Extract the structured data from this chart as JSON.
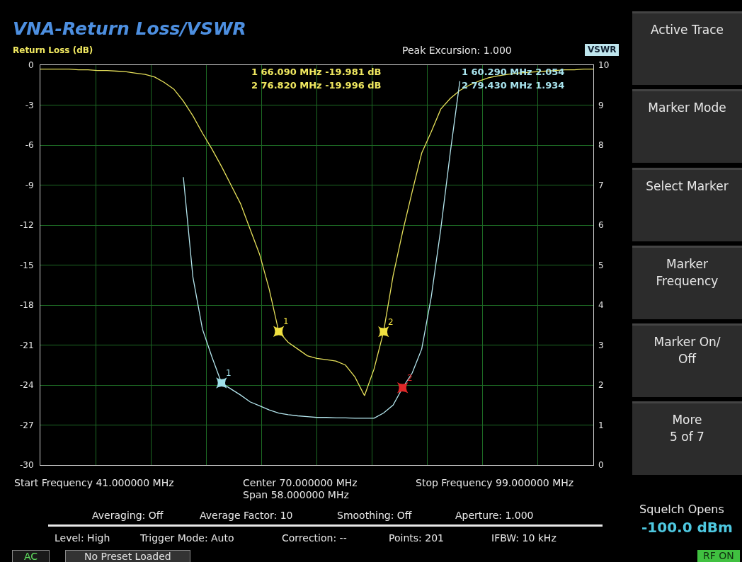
{
  "chart_data": {
    "type": "line",
    "title": "VNA-Return Loss/VSWR",
    "ylabel": "Return Loss (dB)",
    "y2label": "VSWR",
    "categories": [
      null,
      null,
      null,
      null,
      null,
      null,
      null,
      null,
      null,
      null,
      null,
      null,
      null,
      null,
      null,
      null,
      null,
      null,
      null,
      null,
      null,
      null,
      null,
      null,
      null,
      null,
      null,
      null,
      null,
      null,
      null,
      null,
      null,
      null,
      null,
      null,
      null,
      null,
      null,
      null,
      null,
      null,
      null,
      null,
      null,
      null,
      null,
      null,
      null,
      null,
      null,
      null,
      null,
      null,
      null,
      null,
      null,
      null,
      null
    ],
    "ylim": [
      -30,
      0
    ],
    "yticks": [
      -30,
      -27,
      -24,
      -21,
      -18,
      -15,
      -12,
      -9,
      -6,
      -3,
      0
    ],
    "y2lim": [
      0,
      10
    ],
    "y2ticks": [
      0,
      1,
      2,
      3,
      4,
      5,
      6,
      7,
      8,
      9,
      10
    ],
    "tick_labels": "y",
    "grid": true,
    "marker": "none",
    "line_style": "solid",
    "series": [
      {
        "color": "#e6e05a",
        "values": [
          -0.3,
          -0.3,
          -0.3,
          -0.3,
          -0.35,
          -0.35,
          -0.4,
          -0.4,
          -0.45,
          -0.5,
          -0.6,
          -0.7,
          -0.9,
          -1.3,
          -1.8,
          -2.7,
          -3.8,
          -5.1,
          -6.3,
          -7.6,
          -9.0,
          -10.4,
          -12.3,
          -14.2,
          -16.8,
          -19.981,
          -20.8,
          -21.3,
          -21.8,
          -22.0,
          -22.1,
          -22.2,
          -22.5,
          -23.4,
          -24.8,
          -22.8,
          -19.996,
          -15.8,
          -12.5,
          -9.5,
          -6.6,
          -5.0,
          -3.3,
          -2.5,
          -1.9,
          -1.5,
          -1.2,
          -0.95,
          -0.8,
          -0.7,
          -0.6,
          -0.55,
          -0.5,
          -0.45,
          -0.4,
          -0.35,
          -0.35,
          -0.3,
          -0.3
        ]
      },
      {
        "color": "#b4e6ee",
        "axis": "y2",
        "values": [
          null,
          null,
          null,
          null,
          null,
          null,
          null,
          null,
          null,
          null,
          null,
          null,
          null,
          null,
          null,
          7.2,
          4.7,
          3.4,
          2.7,
          2.054,
          1.9,
          1.75,
          1.58,
          1.48,
          1.38,
          1.3,
          1.26,
          1.23,
          1.21,
          1.19,
          1.19,
          1.18,
          1.18,
          1.17,
          1.17,
          1.17,
          1.3,
          1.5,
          1.934,
          2.3,
          2.9,
          4.2,
          5.9,
          7.82,
          9.6,
          null,
          null,
          null,
          null,
          null,
          null,
          null,
          null,
          null,
          null,
          null,
          null,
          null,
          null
        ]
      },
      {
        "type": "scatter",
        "marker": "cross",
        "color": "#f0e040",
        "values": [
          null,
          null,
          null,
          null,
          null,
          null,
          null,
          null,
          null,
          null,
          null,
          null,
          null,
          null,
          null,
          null,
          null,
          null,
          null,
          null,
          null,
          null,
          null,
          null,
          null,
          -19.981,
          null,
          null,
          null,
          null,
          null,
          null,
          null,
          null,
          null,
          null,
          -19.996,
          null,
          null,
          null,
          null,
          null,
          null,
          null,
          null,
          null,
          null,
          null,
          null,
          null,
          null,
          null,
          null,
          null,
          null,
          null,
          null,
          null,
          null
        ]
      },
      {
        "type": "scatter",
        "marker": "cross",
        "color": "#9fe0ea",
        "axis": "y2",
        "values": [
          null,
          null,
          null,
          null,
          null,
          null,
          null,
          null,
          null,
          null,
          null,
          null,
          null,
          null,
          null,
          null,
          null,
          null,
          null,
          2.054,
          null,
          null,
          null,
          null,
          null,
          null,
          null,
          null,
          null,
          null,
          null,
          null,
          null,
          null,
          null,
          null,
          null,
          null,
          null,
          null,
          null,
          null,
          null,
          null,
          null,
          null,
          null,
          null,
          null,
          null,
          null,
          null,
          null,
          null,
          null,
          null,
          null,
          null,
          null
        ]
      },
      {
        "type": "scatter",
        "marker": "cross",
        "color": "#e02828",
        "axis": "y2",
        "values": [
          null,
          null,
          null,
          null,
          null,
          null,
          null,
          null,
          null,
          null,
          null,
          null,
          null,
          null,
          null,
          null,
          null,
          null,
          null,
          null,
          null,
          null,
          null,
          null,
          null,
          null,
          null,
          null,
          null,
          null,
          null,
          null,
          null,
          null,
          null,
          null,
          null,
          null,
          1.934,
          null,
          null,
          null,
          null,
          null,
          null,
          null,
          null,
          null,
          null,
          null,
          null,
          null,
          null,
          null,
          null,
          null,
          null,
          null,
          null
        ]
      }
    ],
    "annotations": [
      "Peak Excursion: 1.000",
      "1 66.090 MHz -19.981 dB",
      "2 76.820 MHz -19.996 dB",
      "1 60.290 MHz 2.054",
      "2 79.430 MHz 1.934",
      "Start Frequency 41.000000 MHz",
      "Center 70.000000 MHz",
      "Span 58.000000 MHz",
      "Stop Frequency 99.000000 MHz",
      "Averaging: Off",
      "Average Factor: 10",
      "Smoothing: Off",
      "Aperture: 1.000",
      "Level: High",
      "Trigger Mode: Auto",
      "Correction: --",
      "Points: 201",
      "IFBW: 10 kHz",
      "AC",
      "No Preset Loaded",
      "RF ON",
      "Active Trace",
      "Marker Mode",
      "Select Marker",
      "Marker\nFrequency",
      "Marker On/\nOff",
      "More\n5 of 7",
      "Squelch Opens",
      "-100.0 dBm",
      "1",
      "2",
      "1",
      "2"
    ]
  }
}
